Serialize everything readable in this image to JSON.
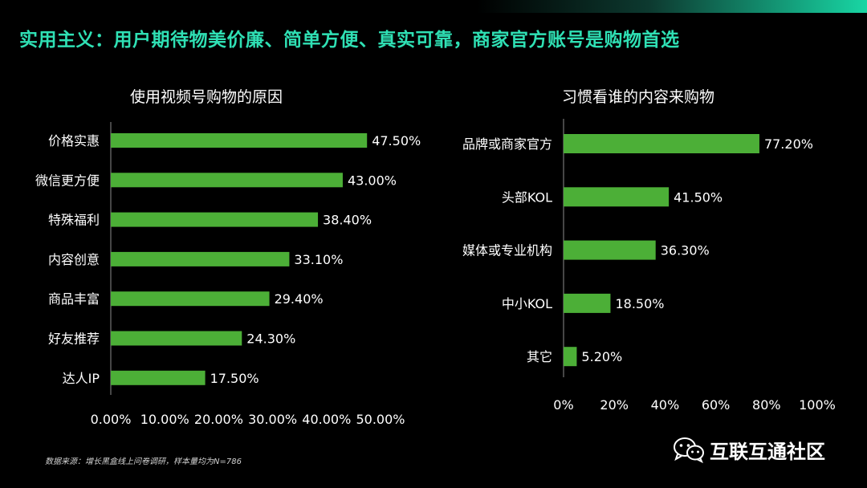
{
  "headline": "实用主义：用户期待物美价廉、简单方便、真实可靠，商家官方账号是购物首选",
  "colors": {
    "bar": "#4caf37",
    "accent": "#2fe0b4",
    "axis": "#8c8c8c"
  },
  "footnote": "数据来源：增长黑盒线上问卷调研，样本量均为N=786",
  "brand": {
    "name": "互联互通社区",
    "icon": "wechat-icon"
  },
  "chart_data": [
    {
      "type": "bar",
      "orientation": "horizontal",
      "title": "使用视频号购物的原因",
      "categories": [
        "价格实惠",
        "微信更方便",
        "特殊福利",
        "内容创意",
        "商品丰富",
        "好友推荐",
        "达人IP"
      ],
      "values": [
        47.5,
        43.0,
        38.4,
        33.1,
        29.4,
        24.3,
        17.5
      ],
      "value_labels": [
        "47.50%",
        "43.00%",
        "38.40%",
        "33.10%",
        "29.40%",
        "24.30%",
        "17.50%"
      ],
      "xlim": [
        0,
        50
      ],
      "ticks": [
        "0.00%",
        "10.00%",
        "20.00%",
        "30.00%",
        "40.00%",
        "50.00%"
      ],
      "xlabel": "",
      "ylabel": "",
      "grid": false
    },
    {
      "type": "bar",
      "orientation": "horizontal",
      "title": "习惯看谁的内容来购物",
      "categories": [
        "品牌或商家官方",
        "头部KOL",
        "媒体或专业机构",
        "中小KOL",
        "其它"
      ],
      "values": [
        77.2,
        41.5,
        36.3,
        18.5,
        5.2
      ],
      "value_labels": [
        "77.20%",
        "41.50%",
        "36.30%",
        "18.50%",
        "5.20%"
      ],
      "xlim": [
        0,
        100
      ],
      "ticks": [
        "0%",
        "20%",
        "40%",
        "60%",
        "80%",
        "100%"
      ],
      "xlabel": "",
      "ylabel": "",
      "grid": false
    }
  ]
}
